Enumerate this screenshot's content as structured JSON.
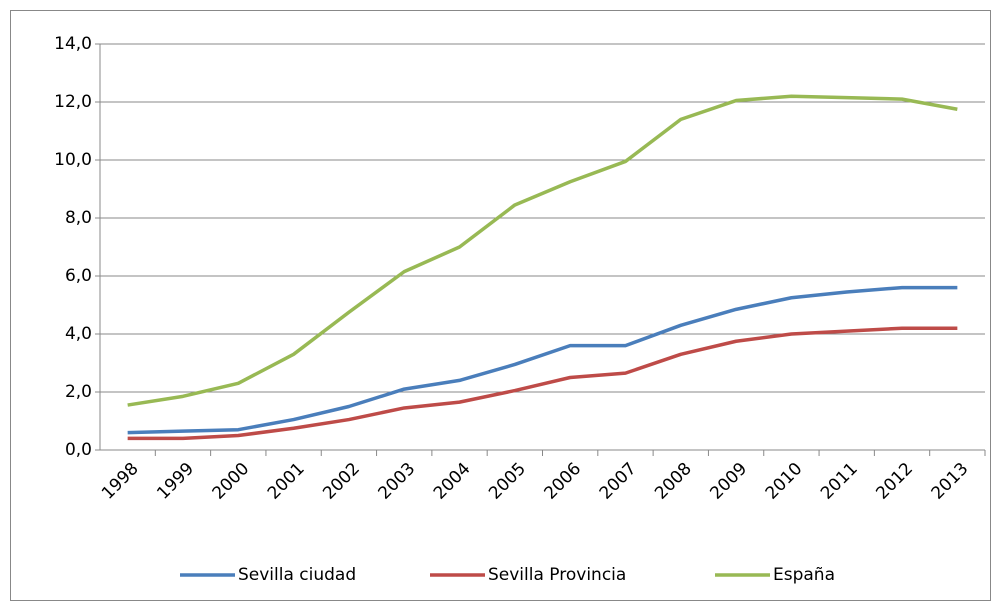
{
  "chart_data": {
    "type": "line",
    "categories": [
      "1998",
      "1999",
      "2000",
      "2001",
      "2002",
      "2003",
      "2004",
      "2005",
      "2006",
      "2007",
      "2008",
      "2009",
      "2010",
      "2011",
      "2012",
      "2013"
    ],
    "series": [
      {
        "name": "Sevilla ciudad",
        "color": "#4a7ebb",
        "values": [
          0.6,
          0.65,
          0.7,
          1.05,
          1.5,
          2.1,
          2.4,
          2.95,
          3.6,
          3.6,
          4.3,
          4.85,
          5.25,
          5.45,
          5.6,
          5.6
        ]
      },
      {
        "name": "Sevilla Provincia",
        "color": "#be4b48",
        "values": [
          0.4,
          0.4,
          0.5,
          0.75,
          1.05,
          1.45,
          1.65,
          2.05,
          2.5,
          2.65,
          3.3,
          3.75,
          4.0,
          4.1,
          4.2,
          4.2
        ]
      },
      {
        "name": "España",
        "color": "#98b954",
        "values": [
          1.55,
          1.85,
          2.3,
          3.3,
          4.75,
          6.15,
          7.0,
          8.45,
          9.25,
          9.95,
          11.4,
          12.05,
          12.2,
          12.15,
          12.1,
          11.75
        ]
      }
    ],
    "ylim": [
      0,
      14
    ],
    "yticks": [
      {
        "value": 0,
        "label": "0,0"
      },
      {
        "value": 2,
        "label": "2,0"
      },
      {
        "value": 4,
        "label": "4,0"
      },
      {
        "value": 6,
        "label": "6,0"
      },
      {
        "value": 8,
        "label": "8,0"
      },
      {
        "value": 10,
        "label": "10,0"
      },
      {
        "value": 12,
        "label": "12,0"
      },
      {
        "value": 14,
        "label": "14,0"
      }
    ],
    "grid": true,
    "legend": "bottom"
  }
}
